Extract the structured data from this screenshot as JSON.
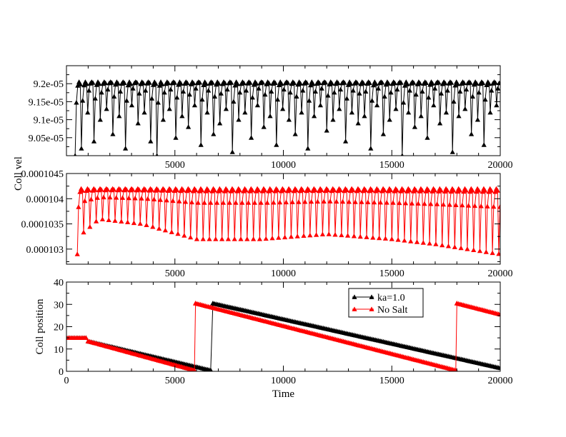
{
  "chart_data": [
    {
      "type": "line",
      "xlim": [
        0,
        20000
      ],
      "ylim": [
        9e-05,
        9.25e-05
      ],
      "yticks": [
        "9.05e-05",
        "9.1e-05",
        "9.15e-05",
        "9.2e-05"
      ],
      "ytick_values": [
        9.05e-05,
        9.1e-05,
        9.15e-05,
        9.2e-05
      ],
      "xticks": [
        "5000",
        "10000",
        "15000",
        "20000"
      ],
      "xtick_values": [
        5000,
        10000,
        15000,
        20000
      ],
      "ylabel": "",
      "series": [
        {
          "color": "#000000",
          "marker": "triangle",
          "start_x": 400,
          "period": 290,
          "max": 9.205e-05,
          "dips": [
            9e-05,
            9.02e-05,
            9.12e-05,
            9.04e-05,
            9.1e-05,
            9.13e-05,
            9.06e-05,
            9.11e-05,
            9.02e-05,
            9.14e-05,
            9.09e-05,
            9.12e-05,
            9.04e-05,
            9e-05,
            9.1e-05,
            9.13e-05,
            9.05e-05,
            9.11e-05,
            9.08e-05,
            9.14e-05,
            9.03e-05,
            9.12e-05,
            9.06e-05,
            9.09e-05,
            9.13e-05,
            9.01e-05,
            9.1e-05,
            9.12e-05,
            9.05e-05,
            9.14e-05,
            9.08e-05,
            9.11e-05,
            9.03e-05,
            9.13e-05,
            9.1e-05,
            9.06e-05,
            9.12e-05,
            9.02e-05,
            9.11e-05,
            9.14e-05,
            9.07e-05,
            9.1e-05,
            9.13e-05,
            9.04e-05,
            9.12e-05,
            9.09e-05,
            9.11e-05,
            9.02e-05,
            9.14e-05,
            9.06e-05,
            9.1e-05,
            9.13e-05,
            9e-05,
            9.12e-05,
            9.08e-05,
            9.11e-05,
            9.05e-05,
            9.14e-05,
            9.09e-05,
            9.12e-05,
            9.01e-05,
            9.11e-05,
            9.13e-05,
            9.06e-05,
            9.1e-05,
            9.03e-05,
            9.12e-05,
            9.14e-05
          ]
        }
      ]
    },
    {
      "type": "line",
      "xlim": [
        0,
        20000
      ],
      "ylim": [
        0.0001027,
        0.0001045
      ],
      "yticks": [
        "0.000103",
        "0.0001035",
        "0.000104",
        "0.0001045"
      ],
      "ytick_values": [
        0.000103,
        0.0001035,
        0.000104,
        0.0001045
      ],
      "xticks": [
        "5000",
        "10000",
        "15000",
        "20000"
      ],
      "xtick_values": [
        5000,
        10000,
        15000,
        20000
      ],
      "ylabel": "Coll vel",
      "series": [
        {
          "color": "#ff0000",
          "marker": "triangle",
          "start_x": 500,
          "period": 290,
          "max": 0.0001042,
          "baseline": [
            [
              500,
              0.0001029
            ],
            [
              700,
              0.0001033
            ],
            [
              1500,
              0.0001036
            ],
            [
              3500,
              0.0001035
            ],
            [
              6000,
              0.0001032
            ],
            [
              9000,
              0.0001032
            ],
            [
              12000,
              0.0001033
            ],
            [
              15000,
              0.0001032
            ],
            [
              17000,
              0.0001031
            ],
            [
              20000,
              0.0001029
            ]
          ]
        }
      ]
    },
    {
      "type": "line",
      "xlim": [
        0,
        20000
      ],
      "ylim": [
        0,
        40
      ],
      "yticks": [
        "0",
        "10",
        "20",
        "30",
        "40"
      ],
      "ytick_values": [
        0,
        10,
        20,
        30,
        40
      ],
      "xticks": [
        "0",
        "5000",
        "10000",
        "15000",
        "20000"
      ],
      "xtick_values": [
        0,
        5000,
        10000,
        15000,
        20000
      ],
      "xlabel": "Time",
      "ylabel": "Coll position",
      "legend": "top-right",
      "series": [
        {
          "name": "ka=1.0",
          "color": "#000000",
          "marker": "triangle",
          "segments": [
            [
              [
                0,
                15
              ],
              [
                900,
                15
              ],
              [
                1000,
                13.5
              ],
              [
                6650,
                0.5
              ]
            ],
            [
              [
                6650,
                0.5
              ],
              [
                6750,
                30.5
              ],
              [
                20000,
                1.5
              ]
            ]
          ]
        },
        {
          "name": "No Salt",
          "color": "#ff0000",
          "marker": "triangle",
          "segments": [
            [
              [
                0,
                15
              ],
              [
                900,
                15
              ],
              [
                1000,
                13.5
              ],
              [
                5900,
                0.5
              ]
            ],
            [
              [
                5900,
                0.5
              ],
              [
                5950,
                30.5
              ],
              [
                17950,
                0.5
              ]
            ],
            [
              [
                17950,
                0.5
              ],
              [
                18000,
                30.5
              ],
              [
                20000,
                25.5
              ]
            ]
          ]
        }
      ]
    }
  ]
}
